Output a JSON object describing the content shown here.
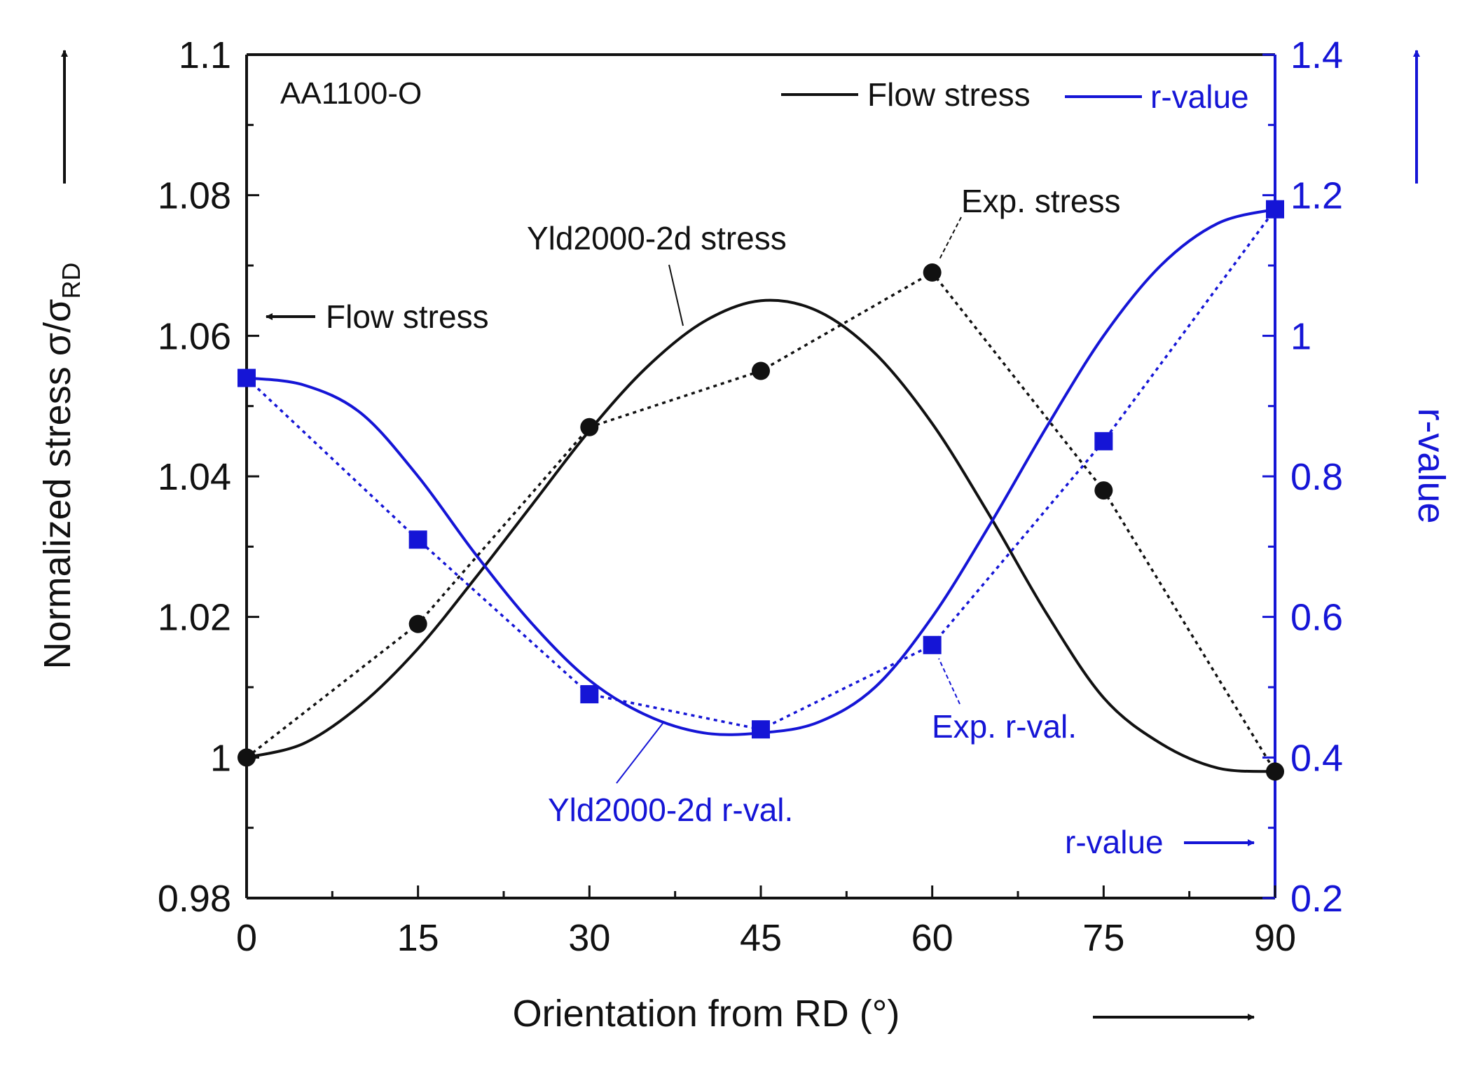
{
  "chart_data": {
    "type": "line",
    "panel_label": "AA1100-O",
    "xlabel": "Orientation from RD (°)",
    "ylabel_left": "Normalized stress σ/σ",
    "ylabel_left_sub": "RD",
    "ylabel_right": "r-value",
    "x_ticks": [
      0,
      15,
      30,
      45,
      60,
      75,
      90
    ],
    "xlim": [
      0,
      90
    ],
    "ylim_left": [
      0.98,
      1.1
    ],
    "y_ticks_left": [
      "0.98",
      "1",
      "1.02",
      "1.04",
      "1.06",
      "1.08",
      "1.1"
    ],
    "ylim_right": [
      0.2,
      1.4
    ],
    "y_ticks_right": [
      "0.2",
      "0.4",
      "0.6",
      "0.8",
      "1",
      "1.2",
      "1.4"
    ],
    "colors": {
      "stress": "#111111",
      "rvalue": "#1515d6"
    },
    "legend": [
      {
        "label": "Flow stress",
        "color": "#111111"
      },
      {
        "label": "r-value",
        "color": "#1515d6"
      }
    ],
    "series": [
      {
        "name": "Exp. stress",
        "axis": "left",
        "style": "dotted-markers-circle",
        "x": [
          0,
          15,
          30,
          45,
          60,
          75,
          90
        ],
        "y": [
          1.0,
          1.019,
          1.047,
          1.055,
          1.069,
          1.038,
          0.998
        ]
      },
      {
        "name": "Yld2000-2d stress",
        "axis": "left",
        "style": "solid",
        "x": [
          0,
          5,
          10,
          15,
          20,
          25,
          30,
          35,
          40,
          45,
          50,
          55,
          60,
          65,
          70,
          75,
          80,
          85,
          90
        ],
        "y": [
          1.0,
          1.002,
          1.0075,
          1.0155,
          1.0255,
          1.036,
          1.0465,
          1.0555,
          1.062,
          1.065,
          1.0635,
          1.0575,
          1.0475,
          1.0345,
          1.0205,
          1.0085,
          1.002,
          0.9985,
          0.998
        ]
      },
      {
        "name": "Exp. r-val.",
        "axis": "right",
        "style": "dotted-markers-square",
        "x": [
          0,
          15,
          30,
          45,
          60,
          75,
          90
        ],
        "y": [
          0.94,
          0.71,
          0.49,
          0.44,
          0.56,
          0.85,
          1.18
        ]
      },
      {
        "name": "Yld2000-2d r-val.",
        "axis": "right",
        "style": "solid",
        "x": [
          0,
          5,
          10,
          15,
          20,
          25,
          30,
          35,
          40,
          45,
          50,
          55,
          60,
          65,
          70,
          75,
          80,
          85,
          90
        ],
        "y": [
          0.94,
          0.93,
          0.89,
          0.8,
          0.69,
          0.59,
          0.51,
          0.46,
          0.435,
          0.435,
          0.45,
          0.5,
          0.6,
          0.73,
          0.87,
          1.0,
          1.1,
          1.16,
          1.18
        ]
      }
    ],
    "annotations": [
      {
        "key": "yld_stress",
        "text": "Yld2000-2d stress",
        "color": "#111111"
      },
      {
        "key": "exp_stress",
        "text": "Exp. stress",
        "color": "#111111"
      },
      {
        "key": "flow_stress",
        "text": "Flow stress",
        "color": "#111111"
      },
      {
        "key": "yld_r",
        "text": "Yld2000-2d r-val.",
        "color": "#1515d6"
      },
      {
        "key": "exp_r",
        "text": "Exp. r-val.",
        "color": "#1515d6"
      },
      {
        "key": "r_value",
        "text": "r-value",
        "color": "#1515d6"
      }
    ]
  }
}
